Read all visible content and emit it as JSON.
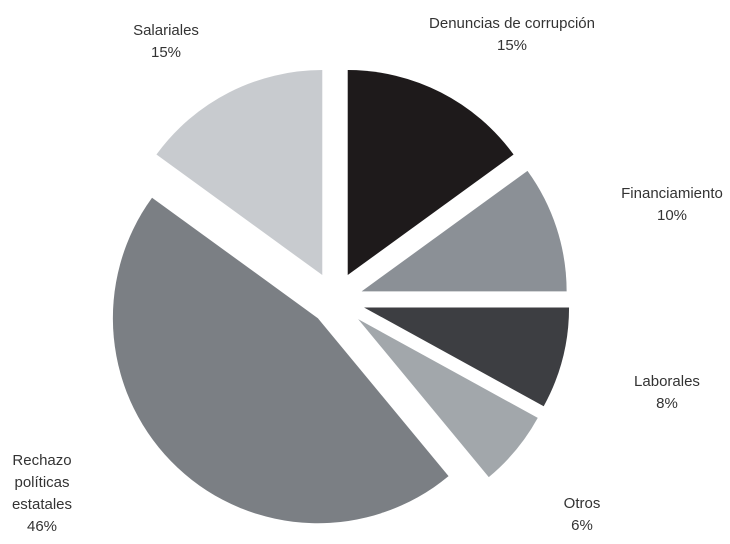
{
  "chart_data": {
    "type": "pie",
    "categories": [
      "Denuncias de corrupción",
      "Financiamiento",
      "Laborales",
      "Otros",
      "Rechazo políticas estatales",
      "Salariales"
    ],
    "values": [
      15,
      10,
      8,
      6,
      46,
      15
    ],
    "value_labels": [
      "15%",
      "10%",
      "8%",
      "6%",
      "46%",
      "15%"
    ],
    "colors": [
      "#1e1a1b",
      "#8b9096",
      "#3d3e42",
      "#a2a7ab",
      "#7b7f84",
      "#c8cbcf"
    ]
  }
}
